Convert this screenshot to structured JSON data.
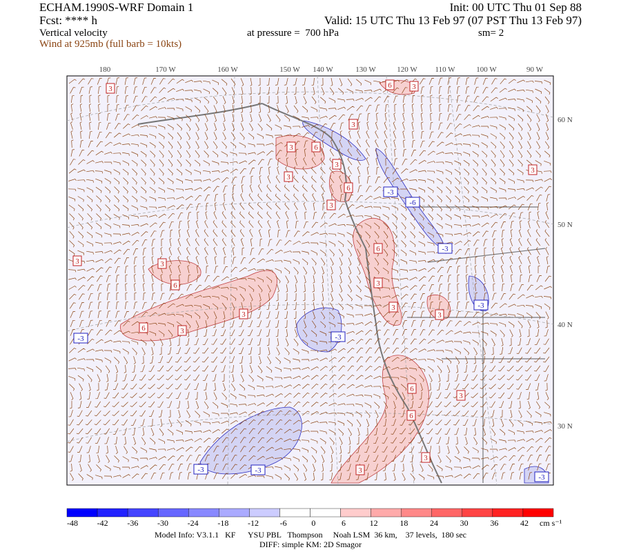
{
  "header": {
    "title": "ECHAM.1990S-WRF Domain 1",
    "forecast": "Fcst: **** h",
    "field": "Vertical velocity",
    "wind": "Wind at 925mb (full barb = 10kts)",
    "init": "Init: 00 UTC Thu 01 Sep 88",
    "valid": "Valid: 15 UTC Thu 13 Feb 97 (07 PST Thu 13 Feb 97)",
    "pressure": "at pressure =  700 hPa",
    "smoothing": "sm= 2"
  },
  "longitude_labels": [
    "180",
    "170 W",
    "160 W",
    "150 W",
    "140 W",
    "130 W",
    "120 W",
    "110 W",
    "100 W",
    "90 W"
  ],
  "latitude_labels": [
    "60 N",
    "50 N",
    "40 N",
    "30 N"
  ],
  "contour_labels": [
    "3",
    "6",
    "3",
    "3",
    "3",
    "6",
    "3",
    "3",
    "6",
    "3",
    "-3",
    "-6",
    "-3",
    "3",
    "3",
    "3",
    "6",
    "6",
    "3",
    "3",
    "3",
    "-3",
    "3",
    "6",
    "3",
    "-3",
    "-3",
    "6",
    "3",
    "6",
    "3",
    "3",
    "-3",
    "-3",
    "-3"
  ],
  "colorbar": {
    "ticks": [
      -48,
      -42,
      -36,
      -30,
      -24,
      -18,
      -12,
      -6,
      0,
      6,
      12,
      18,
      24,
      30,
      36,
      42
    ],
    "units": "cm s⁻¹"
  },
  "footer": {
    "model_info": "Model Info: V3.1.1   KF      YSU PBL   Thompson     Noah LSM  36 km,    37 levels,  180 sec",
    "diff": "DIFF: simple KM: 2D Smagor"
  }
}
